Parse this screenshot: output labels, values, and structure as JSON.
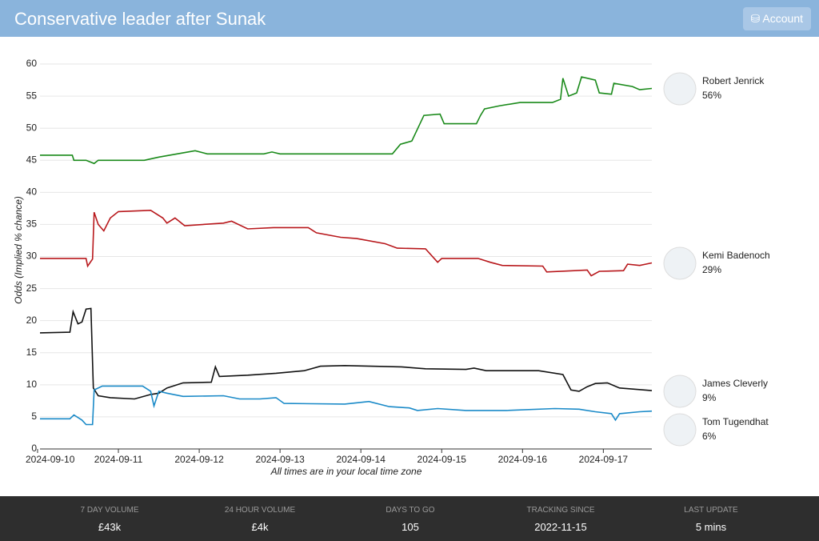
{
  "header": {
    "title": "Conservative leader after Sunak",
    "account": "Account"
  },
  "chart_data": {
    "type": "line",
    "y_label": "Odds (Implied % chance)",
    "note": "All times are in your local time zone",
    "xlim": [
      0.03,
      7.6
    ],
    "xticks": [
      {
        "value": 0,
        "label": "2024-09-10"
      },
      {
        "value": 1,
        "label": "2024-09-11"
      },
      {
        "value": 2,
        "label": "2024-09-12"
      },
      {
        "value": 3,
        "label": "2024-09-13"
      },
      {
        "value": 4,
        "label": "2024-09-14"
      },
      {
        "value": 5,
        "label": "2024-09-15"
      },
      {
        "value": 6,
        "label": "2024-09-16"
      },
      {
        "value": 7,
        "label": "2024-09-17"
      }
    ],
    "ylim": [
      0,
      62
    ],
    "yticks": [
      0,
      5,
      10,
      15,
      20,
      25,
      30,
      35,
      40,
      45,
      50,
      55,
      60
    ],
    "grid": true,
    "series": [
      {
        "name": "Robert Jenrick",
        "color": "#1a8a1a",
        "current_label": "56%",
        "x": [
          0.03,
          0.43,
          0.45,
          0.6,
          0.7,
          0.75,
          1.32,
          1.5,
          1.86,
          1.95,
          2.1,
          2.8,
          2.9,
          3.0,
          4.39,
          4.49,
          4.63,
          4.78,
          4.98,
          5.03,
          5.43,
          5.48,
          5.53,
          5.72,
          5.97,
          6.37,
          6.47,
          6.5,
          6.57,
          6.67,
          6.73,
          6.9,
          6.95,
          7.1,
          7.13,
          7.36,
          7.45,
          7.6
        ],
        "values": [
          45.8,
          45.8,
          45,
          45,
          44.5,
          45,
          45,
          45.5,
          46.3,
          46.5,
          46,
          46,
          46.3,
          46,
          46,
          47.5,
          48,
          52,
          52.2,
          50.7,
          50.7,
          52,
          53,
          53.5,
          54,
          54,
          54.5,
          57.8,
          55,
          55.5,
          58,
          57.5,
          55.5,
          55.3,
          57,
          56.5,
          56,
          56.2
        ]
      },
      {
        "name": "Kemi Badenoch",
        "color": "#b8181c",
        "current_label": "29%",
        "x": [
          0.03,
          0.6,
          0.62,
          0.68,
          0.7,
          0.75,
          0.82,
          0.9,
          1.0,
          1.4,
          1.55,
          1.6,
          1.7,
          1.82,
          2.3,
          2.4,
          2.6,
          2.92,
          3.35,
          3.45,
          3.75,
          3.95,
          4.3,
          4.45,
          4.8,
          4.95,
          5.0,
          5.45,
          5.6,
          5.75,
          6.25,
          6.3,
          6.8,
          6.85,
          6.95,
          7.25,
          7.3,
          7.45,
          7.6
        ],
        "values": [
          29.7,
          29.7,
          28.5,
          29.6,
          36.9,
          35,
          34,
          36,
          37,
          37.2,
          36,
          35.2,
          36,
          34.8,
          35.2,
          35.5,
          34.3,
          34.5,
          34.5,
          33.7,
          33,
          32.8,
          32,
          31.3,
          31.2,
          29.1,
          29.7,
          29.7,
          29.1,
          28.6,
          28.5,
          27.6,
          27.9,
          27,
          27.7,
          27.8,
          28.8,
          28.6,
          29
        ]
      },
      {
        "name": "James Cleverly",
        "color": "#111111",
        "current_label": "9%",
        "x": [
          0.03,
          0.4,
          0.44,
          0.5,
          0.55,
          0.6,
          0.66,
          0.69,
          0.75,
          0.9,
          1.2,
          1.4,
          1.5,
          1.6,
          1.8,
          2.15,
          2.2,
          2.25,
          2.6,
          2.95,
          3.3,
          3.5,
          3.8,
          4.5,
          4.8,
          5.3,
          5.4,
          5.55,
          6.2,
          6.5,
          6.6,
          6.7,
          6.8,
          6.9,
          7.05,
          7.2,
          7.4,
          7.6
        ],
        "values": [
          18.1,
          18.2,
          21.4,
          19.5,
          19.8,
          21.8,
          21.9,
          9.5,
          8.3,
          8,
          7.8,
          8.5,
          8.7,
          9.5,
          10.3,
          10.4,
          12.8,
          11.3,
          11.5,
          11.8,
          12.2,
          12.9,
          13,
          12.8,
          12.5,
          12.4,
          12.6,
          12.2,
          12.2,
          11.6,
          9.2,
          9,
          9.7,
          10.2,
          10.3,
          9.5,
          9.3,
          9.1
        ]
      },
      {
        "name": "Tom Tugendhat",
        "color": "#1a8ac8",
        "current_label": "6%",
        "x": [
          0.03,
          0.4,
          0.45,
          0.55,
          0.6,
          0.68,
          0.7,
          0.8,
          1.3,
          1.4,
          1.44,
          1.5,
          1.6,
          1.8,
          2.3,
          2.5,
          2.75,
          2.95,
          3.05,
          3.8,
          4.1,
          4.35,
          4.6,
          4.7,
          4.95,
          5.3,
          5.8,
          6.4,
          6.7,
          6.9,
          7.1,
          7.15,
          7.2,
          7.45,
          7.6
        ],
        "values": [
          4.7,
          4.7,
          5.3,
          4.5,
          3.8,
          3.8,
          9.2,
          9.8,
          9.8,
          9,
          6.7,
          9,
          8.7,
          8.2,
          8.3,
          7.8,
          7.8,
          8,
          7.1,
          7,
          7.4,
          6.6,
          6.4,
          6,
          6.3,
          6,
          6,
          6.3,
          6.2,
          5.8,
          5.5,
          4.5,
          5.5,
          5.8,
          5.9
        ]
      }
    ]
  },
  "stats": [
    {
      "label": "7 DAY VOLUME",
      "value": "£43k"
    },
    {
      "label": "24 HOUR VOLUME",
      "value": "£4k"
    },
    {
      "label": "DAYS TO GO",
      "value": "105"
    },
    {
      "label": "TRACKING SINCE",
      "value": "2022-11-15"
    },
    {
      "label": "LAST UPDATE",
      "value": "5 mins"
    }
  ]
}
